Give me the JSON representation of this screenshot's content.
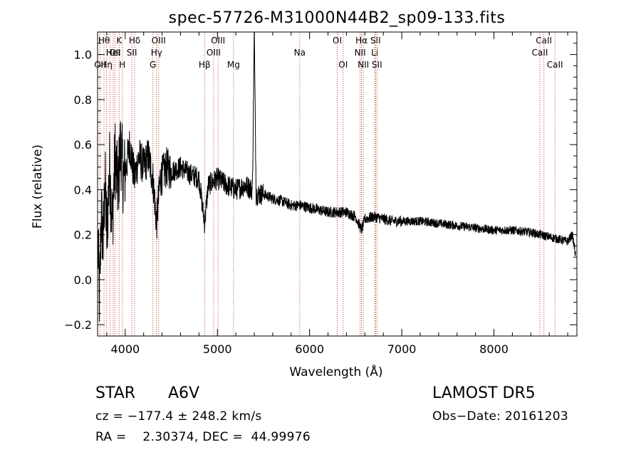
{
  "chart_data": {
    "type": "line",
    "title": "spec-57726-M31000N44B2_sp09-133.fits",
    "xlabel": "Wavelength (Å)",
    "ylabel": "Flux (relative)",
    "xlim": [
      3700,
      8900
    ],
    "ylim": [
      -0.25,
      1.1
    ],
    "x_ticks": [
      4000,
      5000,
      6000,
      7000,
      8000
    ],
    "y_ticks": [
      -0.2,
      0.0,
      0.2,
      0.4,
      0.6,
      0.8,
      1.0
    ],
    "x_tick_labels": [
      "4000",
      "5000",
      "6000",
      "7000",
      "8000"
    ],
    "y_tick_labels": [
      "−0.2",
      "0.0",
      "0.2",
      "0.4",
      "0.6",
      "0.8",
      "1.0"
    ],
    "grid": false,
    "series": [
      {
        "x": [
          3700,
          3720,
          3740,
          3760,
          3780,
          3800,
          3830,
          3860,
          3890,
          3920,
          3950,
          3980,
          4010,
          4050,
          4100,
          4150,
          4200,
          4250,
          4300,
          4340,
          4380,
          4450,
          4500,
          4600,
          4700,
          4800,
          4861,
          4900,
          5000,
          5100,
          5200,
          5300,
          5380,
          5400,
          5420,
          5500,
          5600,
          5700,
          5800,
          5900,
          6000,
          6100,
          6200,
          6300,
          6400,
          6500,
          6563,
          6600,
          6700,
          6800,
          6900,
          7000,
          7200,
          7400,
          7600,
          7800,
          8000,
          8200,
          8400,
          8500,
          8600,
          8700,
          8800,
          8850,
          8890
        ],
        "y": [
          0.25,
          -0.1,
          0.3,
          0.15,
          0.45,
          0.2,
          0.5,
          0.25,
          0.55,
          0.4,
          0.6,
          0.45,
          0.5,
          0.6,
          0.45,
          0.55,
          0.5,
          0.55,
          0.45,
          0.25,
          0.45,
          0.5,
          0.48,
          0.5,
          0.47,
          0.45,
          0.25,
          0.42,
          0.45,
          0.42,
          0.4,
          0.42,
          0.4,
          1.1,
          0.38,
          0.38,
          0.36,
          0.35,
          0.33,
          0.33,
          0.32,
          0.31,
          0.3,
          0.3,
          0.3,
          0.28,
          0.22,
          0.27,
          0.28,
          0.27,
          0.26,
          0.26,
          0.26,
          0.25,
          0.24,
          0.23,
          0.22,
          0.22,
          0.21,
          0.2,
          0.19,
          0.18,
          0.17,
          0.2,
          0.1
        ]
      }
    ],
    "lines": [
      {
        "wl": 3727,
        "label": "OII",
        "row": 2
      },
      {
        "wl": 3770,
        "label": "Hθ",
        "row": 0
      },
      {
        "wl": 3798,
        "label": "Hη",
        "row": 2
      },
      {
        "wl": 3835,
        "label": "",
        "row": 0
      },
      {
        "wl": 3869,
        "label": "HeI",
        "row": 1
      },
      {
        "wl": 3889,
        "label": "OII",
        "row": 1
      },
      {
        "wl": 3934,
        "label": "K",
        "row": 0
      },
      {
        "wl": 3969,
        "label": "H",
        "row": 2
      },
      {
        "wl": 4072,
        "label": "SII",
        "row": 1
      },
      {
        "wl": 4102,
        "label": "Hδ",
        "row": 0
      },
      {
        "wl": 4300,
        "label": "G",
        "row": 2
      },
      {
        "wl": 4340,
        "label": "Hγ",
        "row": 1
      },
      {
        "wl": 4363,
        "label": "OIII",
        "row": 0
      },
      {
        "wl": 4861,
        "label": "Hβ",
        "row": 2
      },
      {
        "wl": 4959,
        "label": "OIII",
        "row": 1
      },
      {
        "wl": 5007,
        "label": "OIII",
        "row": 0
      },
      {
        "wl": 5175,
        "label": "Mg",
        "row": 2
      },
      {
        "wl": 5893,
        "label": "Na",
        "row": 1
      },
      {
        "wl": 6300,
        "label": "OI",
        "row": 0
      },
      {
        "wl": 6364,
        "label": "OI",
        "row": 2
      },
      {
        "wl": 6548,
        "label": "NII",
        "row": 1
      },
      {
        "wl": 6563,
        "label": "Hα",
        "row": 0
      },
      {
        "wl": 6583,
        "label": "NII",
        "row": 2
      },
      {
        "wl": 6707,
        "label": "Li",
        "row": 1
      },
      {
        "wl": 6716,
        "label": "SII",
        "row": 0
      },
      {
        "wl": 6731,
        "label": "SII",
        "row": 2
      },
      {
        "wl": 8498,
        "label": "CaII",
        "row": 1
      },
      {
        "wl": 8542,
        "label": "CaII",
        "row": 0
      },
      {
        "wl": 8662,
        "label": "CaII",
        "row": 2
      }
    ]
  },
  "info": {
    "object_class": "STAR",
    "subclass": "A6V",
    "survey": "LAMOST DR5",
    "cz": "cz = −177.4 ± 248.2 km/s",
    "obs_date": "Obs−Date: 20161203",
    "coords": "RA =    2.30374, DEC =  44.99976"
  }
}
